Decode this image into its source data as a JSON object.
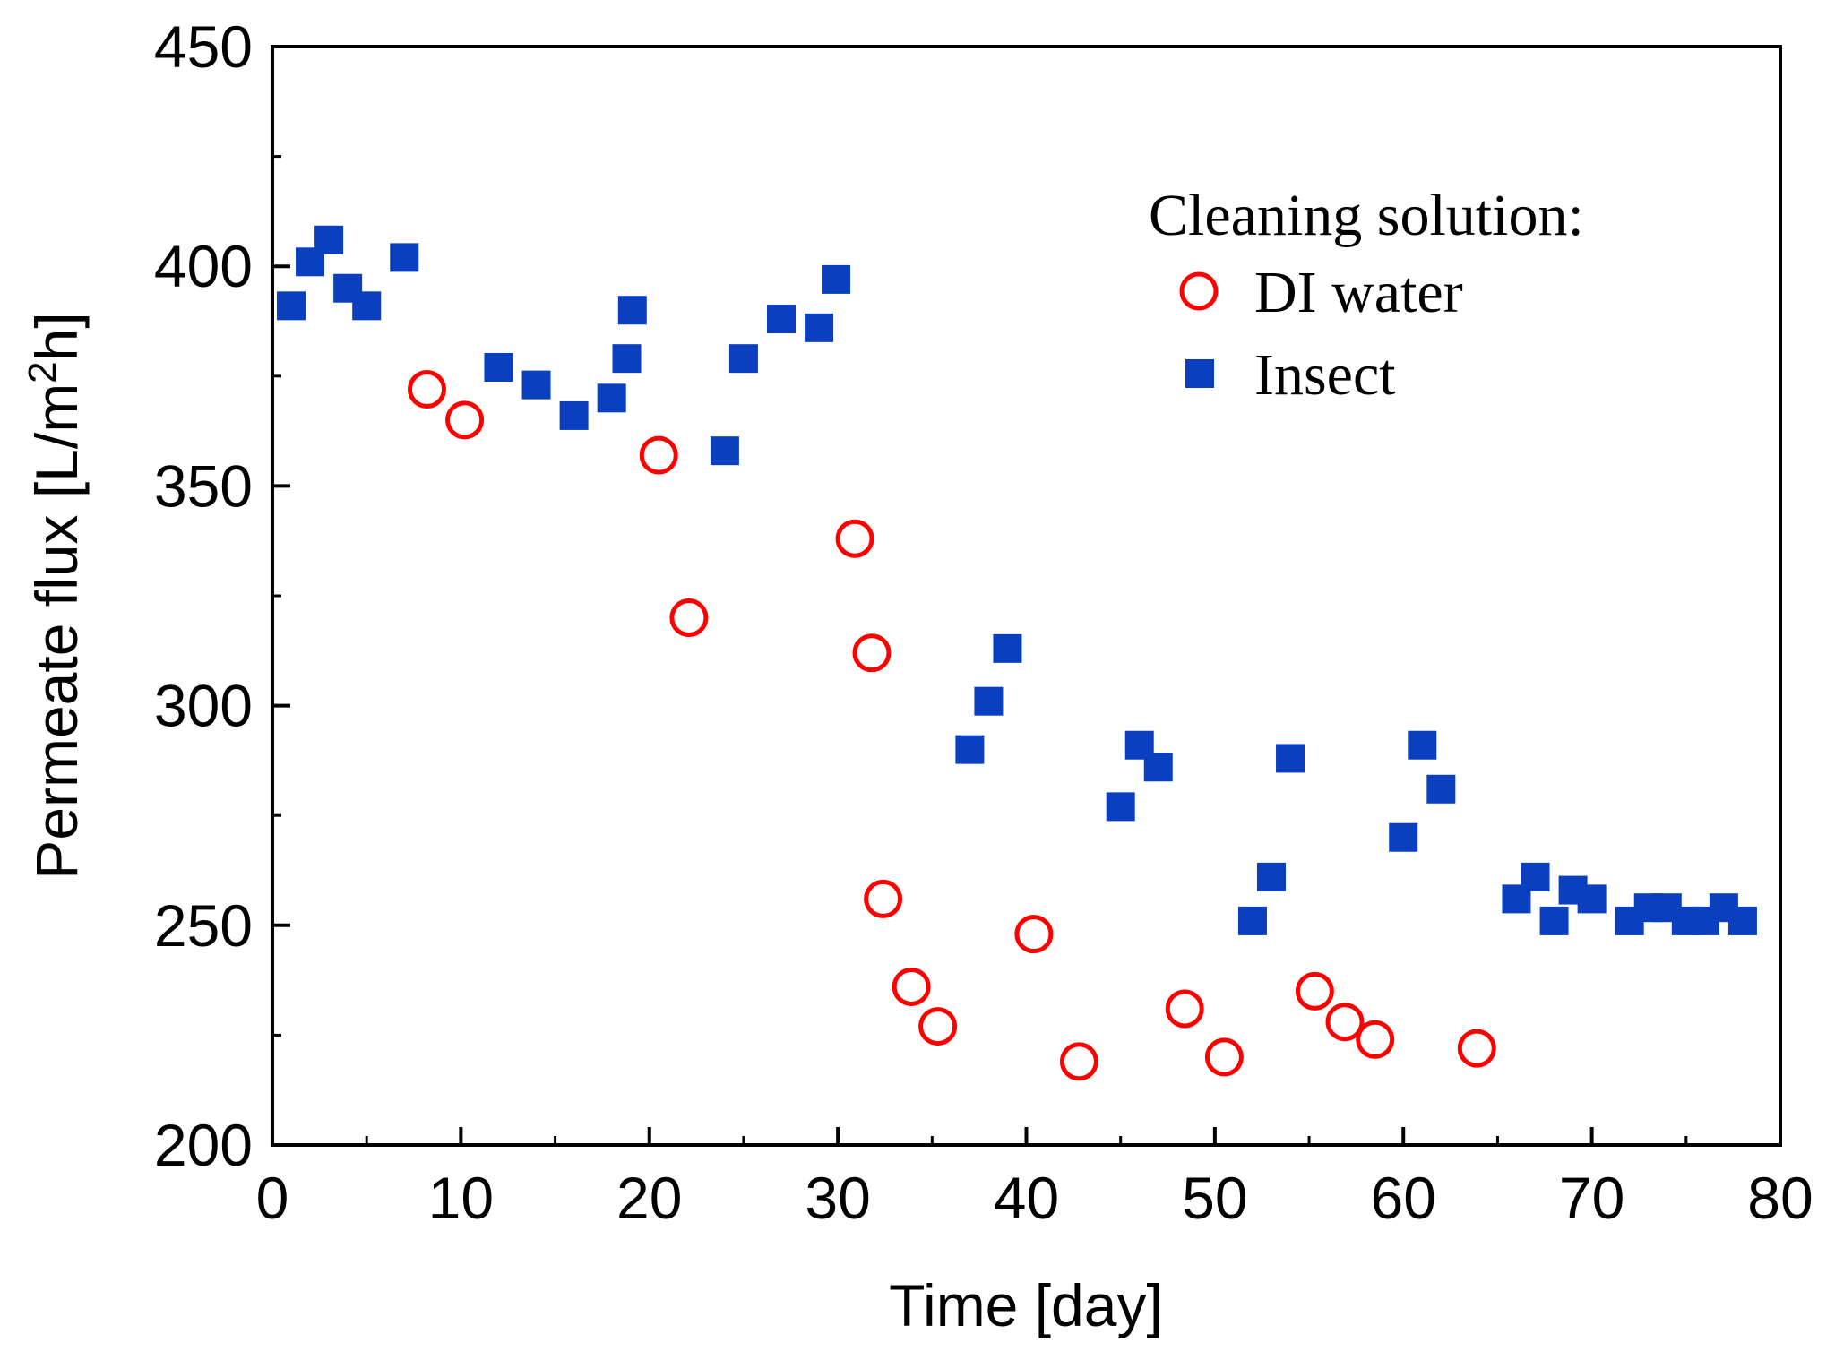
{
  "chart_data": {
    "type": "scatter",
    "title": "",
    "xlabel": "Time [day]",
    "ylabel_main": "Permeate flux [L/m",
    "ylabel_sup": "2",
    "ylabel_end": "h]",
    "xlim": [
      0,
      80
    ],
    "ylim": [
      200,
      450
    ],
    "xticks": [
      0,
      10,
      20,
      30,
      40,
      50,
      60,
      70,
      80
    ],
    "yticks": [
      200,
      250,
      300,
      350,
      400,
      450
    ],
    "xtick_labels": [
      "0",
      "10",
      "20",
      "30",
      "40",
      "50",
      "60",
      "70",
      "80"
    ],
    "ytick_labels": [
      "200",
      "250",
      "300",
      "350",
      "400",
      "450"
    ],
    "grid": false,
    "legend": {
      "title": "Cleaning solution:",
      "position": "top-right"
    },
    "series": [
      {
        "name": "DI water",
        "marker": "open-circle",
        "color": "#ff0000",
        "x": [
          8.2,
          10.2,
          20.5,
          22.1,
          30.9,
          31.8,
          32.4,
          33.9,
          35.3,
          40.4,
          42.8,
          48.4,
          50.5,
          55.3,
          56.9,
          58.5,
          63.9
        ],
        "y": [
          372,
          365,
          357,
          320,
          338,
          312,
          256,
          236,
          227,
          248,
          219,
          231,
          220,
          235,
          228,
          224,
          222
        ]
      },
      {
        "name": "Insect",
        "marker": "filled-square",
        "color": "#0a3fbf",
        "x": [
          1.0,
          2.0,
          3.0,
          4.0,
          5.0,
          7.0,
          12.0,
          14.0,
          16.0,
          18.0,
          18.8,
          19.1,
          24.0,
          25.0,
          27.0,
          29.0,
          29.9,
          37.0,
          38.0,
          39.0,
          45.0,
          46.0,
          47.0,
          52.0,
          53.0,
          54.0,
          60.0,
          61.0,
          62.0,
          66.0,
          67.0,
          68.0,
          69.0,
          70.0,
          72.0,
          73.0,
          74.0,
          75.0,
          76.0,
          77.0,
          78.0
        ],
        "y": [
          391,
          401,
          406,
          395,
          391,
          402,
          377,
          373,
          366,
          370,
          379,
          390,
          358,
          379,
          388,
          386,
          397,
          290,
          301,
          313,
          277,
          291,
          286,
          251,
          261,
          288,
          270,
          291,
          281,
          256,
          261,
          251,
          258,
          256,
          251,
          254,
          254,
          251,
          251,
          254,
          251
        ]
      }
    ]
  }
}
